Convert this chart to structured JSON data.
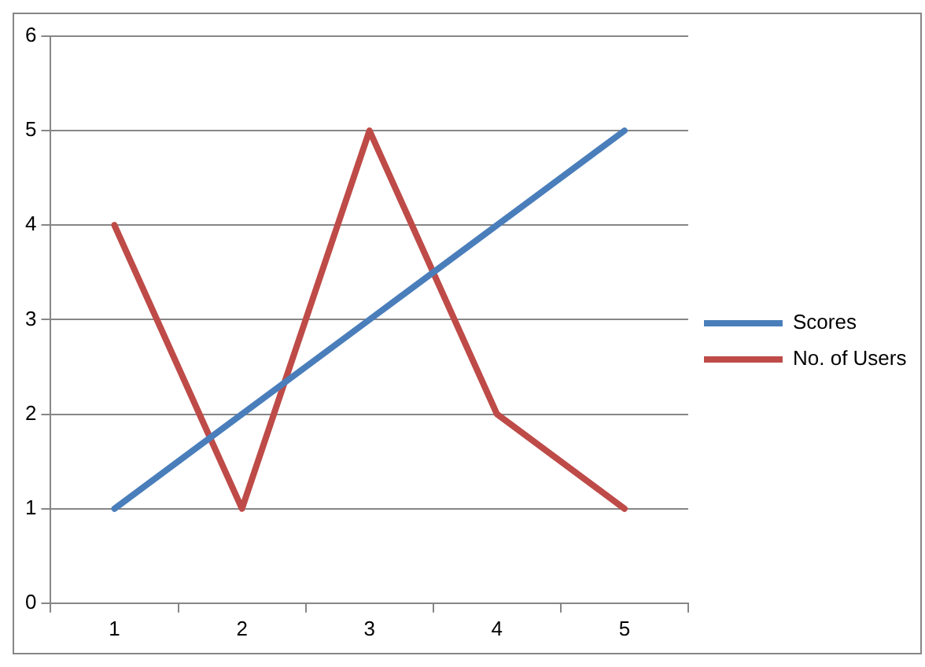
{
  "chart_data": {
    "type": "line",
    "categories": [
      "1",
      "2",
      "3",
      "4",
      "5"
    ],
    "series": [
      {
        "name": "Scores",
        "color": "#4a7ebb",
        "values": [
          1,
          2,
          3,
          4,
          5
        ]
      },
      {
        "name": "No. of Users",
        "color": "#be4b48",
        "values": [
          4,
          1,
          5,
          2,
          1
        ]
      }
    ],
    "ylim": [
      0,
      6
    ],
    "yticks": [
      0,
      1,
      2,
      3,
      4,
      5,
      6
    ],
    "grid": "y",
    "legend": "right",
    "marker": "none",
    "line_style": "solid"
  }
}
